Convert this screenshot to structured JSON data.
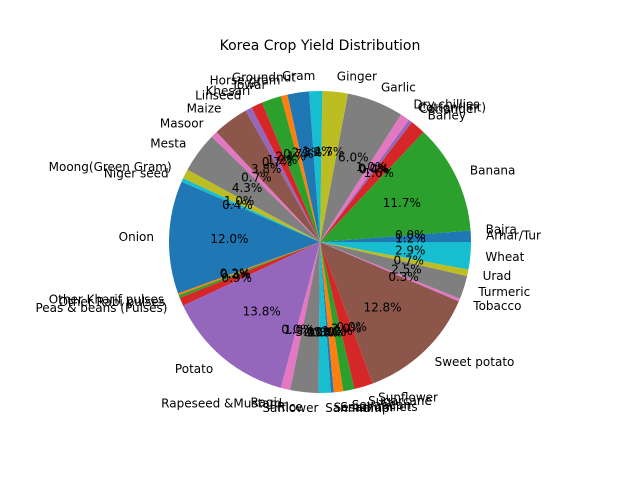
{
  "chart_data": {
    "type": "pie",
    "title": "Korea Crop Yield Distribution",
    "start_angle_deg": 0,
    "direction": "counterclockwise",
    "slices": [
      {
        "label": "Arhar/Tur",
        "value": 1.2,
        "color": "#1f77b4"
      },
      {
        "label": "Bajra",
        "value": 0.0,
        "color": "#ff7f0e"
      },
      {
        "label": "Banana",
        "value": 11.7,
        "color": "#2ca02c"
      },
      {
        "label": "Barley",
        "value": 1.6,
        "color": "#d62728"
      },
      {
        "label": "Coriander",
        "value": 0.4,
        "color": "#9467bd"
      },
      {
        "label": "Cotton(lint)",
        "value": 0.0,
        "color": "#8c564b"
      },
      {
        "label": "Dry chillies",
        "value": 1.0,
        "color": "#e377c2"
      },
      {
        "label": "Garlic",
        "value": 6.0,
        "color": "#7f7f7f"
      },
      {
        "label": "Ginger",
        "value": 2.7,
        "color": "#bcbd22"
      },
      {
        "label": "Gram",
        "value": 1.4,
        "color": "#17becf"
      },
      {
        "label": "Groundnut",
        "value": 2.3,
        "color": "#1f77b4"
      },
      {
        "label": "Horse-gram",
        "value": 0.7,
        "color": "#ff7f0e"
      },
      {
        "label": "Jowar",
        "value": 2.1,
        "color": "#2ca02c"
      },
      {
        "label": "Khesari",
        "value": 1.2,
        "color": "#d62728"
      },
      {
        "label": "Linseed",
        "value": 0.7,
        "color": "#9467bd"
      },
      {
        "label": "Maize",
        "value": 3.8,
        "color": "#8c564b"
      },
      {
        "label": "Masoor",
        "value": 0.7,
        "color": "#e377c2"
      },
      {
        "label": "Mesta",
        "value": 4.3,
        "color": "#7f7f7f"
      },
      {
        "label": "Moong(Green Gram)",
        "value": 1.0,
        "color": "#bcbd22"
      },
      {
        "label": "Niger seed",
        "value": 0.4,
        "color": "#17becf"
      },
      {
        "label": "Onion",
        "value": 12.0,
        "color": "#1f77b4"
      },
      {
        "label": "Other Kharif pulses",
        "value": 0.2,
        "color": "#ff7f0e"
      },
      {
        "label": "Other Rabi pulses",
        "value": 0.3,
        "color": "#2ca02c"
      },
      {
        "label": "Peas & beans (Pulses)",
        "value": 0.9,
        "color": "#d62728"
      },
      {
        "label": "Potato",
        "value": 13.8,
        "color": "#9467bd"
      },
      {
        "label": "Ragi",
        "value": 0.0,
        "color": "#8c564b"
      },
      {
        "label": "Rapeseed &Mustard",
        "value": 1.0,
        "color": "#e377c2"
      },
      {
        "label": "Rice",
        "value": 3.0,
        "color": "#7f7f7f"
      },
      {
        "label": "Safflower",
        "value": 0.0,
        "color": "#bcbd22"
      },
      {
        "label": "Sannhamp",
        "value": 1.3,
        "color": "#17becf"
      },
      {
        "label": "Sesamum",
        "value": 0.3,
        "color": "#1f77b4"
      },
      {
        "label": "Small millets",
        "value": 1.0,
        "color": "#ff7f0e"
      },
      {
        "label": "Soyabean",
        "value": 1.2,
        "color": "#2ca02c"
      },
      {
        "label": "Sugarcane",
        "value": 2.0,
        "color": "#d62728"
      },
      {
        "label": "Sunflower",
        "value": 0.0,
        "color": "#9467bd"
      },
      {
        "label": "Sweet potato",
        "value": 12.8,
        "color": "#8c564b"
      },
      {
        "label": "Tobacco",
        "value": 0.3,
        "color": "#e377c2"
      },
      {
        "label": "Turmeric",
        "value": 2.5,
        "color": "#7f7f7f"
      },
      {
        "label": "Urad",
        "value": 0.7,
        "color": "#bcbd22"
      },
      {
        "label": "Wheat",
        "value": 2.9,
        "color": "#17becf"
      }
    ],
    "pct_labels": [
      "1.2%",
      "0.0%",
      "11.7%",
      "1.6%",
      "0.4%",
      "0.0%",
      "1.0%",
      "6.0%",
      "2.7%",
      "1.4%",
      "2.3%",
      "0.7%",
      "2.1%",
      "1.2%",
      "0.7%",
      "3.8%",
      "0.7%",
      "4.3%",
      "1.0%",
      "0.4%",
      "12.0%",
      "0.2%",
      "0.3%",
      "0.9%",
      "13.8%",
      "0.0%",
      "1.0%",
      "3.0%",
      "0.0%",
      "1.3%",
      "0.3%",
      "1.0%",
      "1.2%",
      "2.0%",
      "0.0%",
      "12.8%",
      "0.3%",
      "2.5%",
      "0.7%",
      "2.9%"
    ]
  }
}
